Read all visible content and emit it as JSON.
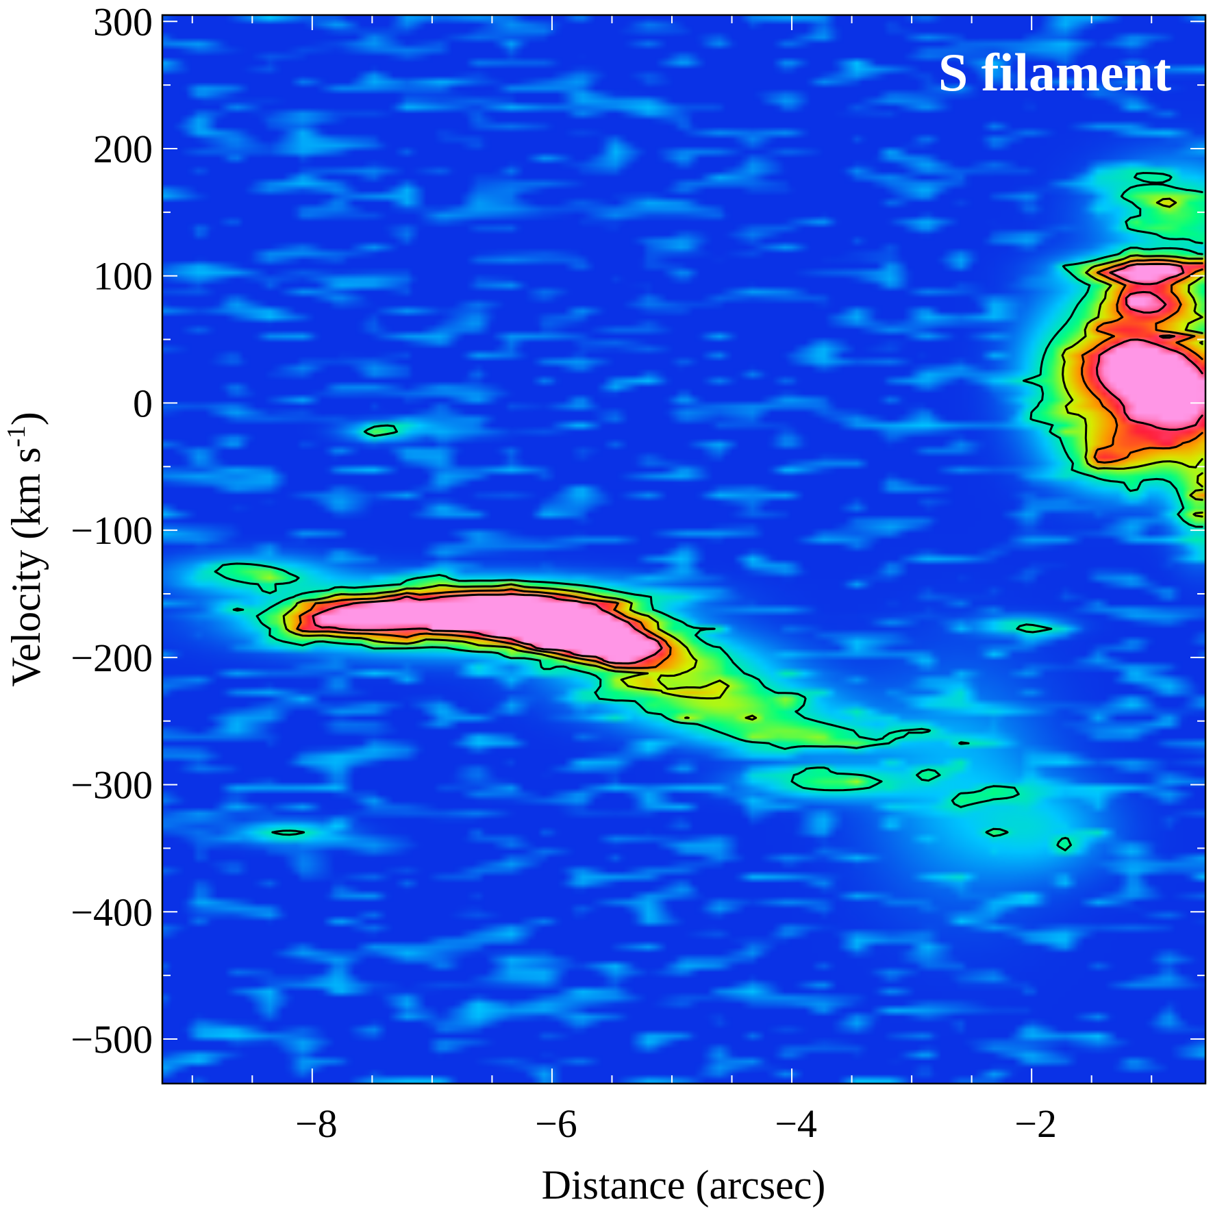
{
  "chart_data": {
    "type": "heatmap",
    "subtype": "position-velocity diagram with contours",
    "annotation": "S filament",
    "xlabel": "Distance (arcsec)",
    "ylabel": {
      "main": "Velocity (km s",
      "superscript": "-1",
      "close": ")"
    },
    "xlim": [
      -9.25,
      -0.55
    ],
    "ylim": [
      -535,
      305
    ],
    "x_ticks": [
      {
        "value": -8,
        "label": "−8"
      },
      {
        "value": -6,
        "label": "−6"
      },
      {
        "value": -4,
        "label": "−4"
      },
      {
        "value": -2,
        "label": "−2"
      }
    ],
    "x_minor_step": 0.5,
    "y_ticks": [
      {
        "value": 300,
        "label": "300"
      },
      {
        "value": 200,
        "label": "200"
      },
      {
        "value": 100,
        "label": "100"
      },
      {
        "value": 0,
        "label": "0"
      },
      {
        "value": -100,
        "label": "−100"
      },
      {
        "value": -200,
        "label": "−200"
      },
      {
        "value": -300,
        "label": "−300"
      },
      {
        "value": -400,
        "label": "−400"
      },
      {
        "value": -500,
        "label": "−500"
      }
    ],
    "y_minor_step": 50,
    "colormap": {
      "background": "#0a32e6",
      "stops": [
        {
          "level": 0.0,
          "color": "#0a32e6"
        },
        {
          "level": 0.25,
          "color": "#00c8ff"
        },
        {
          "level": 0.45,
          "color": "#00ff80"
        },
        {
          "level": 0.62,
          "color": "#d2f500"
        },
        {
          "level": 0.75,
          "color": "#ff9600"
        },
        {
          "level": 0.88,
          "color": "#ff1e3c"
        },
        {
          "level": 1.0,
          "color": "#ff96e6"
        }
      ]
    },
    "contour_color": "#000000",
    "contour_levels": [
      0.38,
      0.6,
      0.78,
      0.92
    ],
    "emission_components": [
      {
        "x": -6.9,
        "y": -170,
        "sx": 0.9,
        "sy": 16,
        "amp": 0.9
      },
      {
        "x": -5.9,
        "y": -175,
        "sx": 0.45,
        "sy": 12,
        "amp": 1.0
      },
      {
        "x": -5.5,
        "y": -192,
        "sx": 0.4,
        "sy": 10,
        "amp": 0.78
      },
      {
        "x": -7.8,
        "y": -170,
        "sx": 0.4,
        "sy": 10,
        "amp": 0.55
      },
      {
        "x": -6.4,
        "y": -152,
        "sx": 0.8,
        "sy": 10,
        "amp": 0.5
      },
      {
        "x": -5.0,
        "y": -210,
        "sx": 0.6,
        "sy": 18,
        "amp": 0.52
      },
      {
        "x": -4.5,
        "y": -240,
        "sx": 0.6,
        "sy": 14,
        "amp": 0.47
      },
      {
        "x": -3.9,
        "y": -262,
        "sx": 0.55,
        "sy": 9,
        "amp": 0.44
      },
      {
        "x": -8.5,
        "y": -135,
        "sx": 0.45,
        "sy": 10,
        "amp": 0.42
      },
      {
        "x": -7.4,
        "y": -22,
        "sx": 0.22,
        "sy": 5,
        "amp": 0.4
      },
      {
        "x": -3.7,
        "y": -298,
        "sx": 0.45,
        "sy": 9,
        "amp": 0.47
      },
      {
        "x": -8.2,
        "y": -338,
        "sx": 0.3,
        "sy": 6,
        "amp": 0.42
      },
      {
        "x": -2.1,
        "y": -175,
        "sx": 0.25,
        "sy": 5,
        "amp": 0.38
      },
      {
        "x": -0.7,
        "y": 5,
        "sx": 0.35,
        "sy": 38,
        "amp": 1.0
      },
      {
        "x": -1.2,
        "y": 30,
        "sx": 0.3,
        "sy": 28,
        "amp": 0.75
      },
      {
        "x": -1.0,
        "y": 105,
        "sx": 0.4,
        "sy": 8,
        "amp": 0.92
      },
      {
        "x": -1.0,
        "y": 80,
        "sx": 0.35,
        "sy": 12,
        "amp": 0.72
      },
      {
        "x": -0.8,
        "y": 150,
        "sx": 0.4,
        "sy": 25,
        "amp": 0.5
      },
      {
        "x": -1.3,
        "y": -40,
        "sx": 0.3,
        "sy": 20,
        "amp": 0.55
      },
      {
        "x": -0.6,
        "y": -80,
        "sx": 0.15,
        "sy": 25,
        "amp": 0.45
      },
      {
        "x": -1.7,
        "y": 20,
        "sx": 0.3,
        "sy": 40,
        "amp": 0.45
      },
      {
        "x": -2.6,
        "y": -300,
        "sx": 0.5,
        "sy": 60,
        "amp": 0.22
      },
      {
        "x": -1.9,
        "y": -335,
        "sx": 0.4,
        "sy": 25,
        "amp": 0.22
      }
    ]
  }
}
